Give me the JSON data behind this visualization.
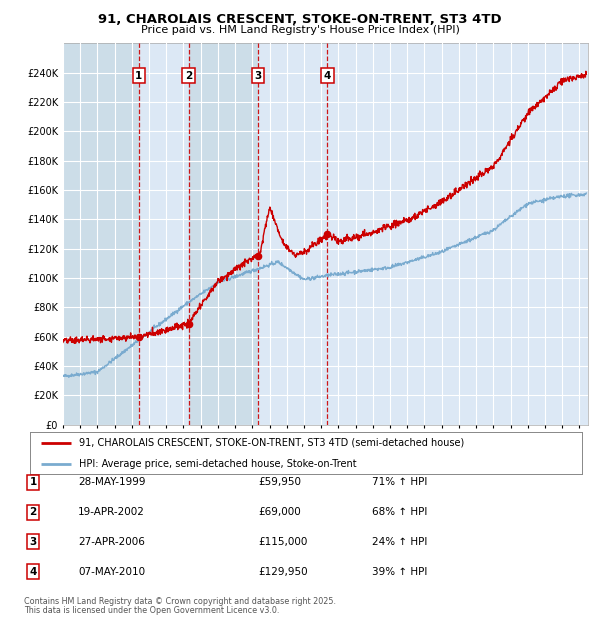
{
  "title": "91, CHAROLAIS CRESCENT, STOKE-ON-TRENT, ST3 4TD",
  "subtitle": "Price paid vs. HM Land Registry's House Price Index (HPI)",
  "ylim": [
    0,
    260000
  ],
  "yticks": [
    0,
    20000,
    40000,
    60000,
    80000,
    100000,
    120000,
    140000,
    160000,
    180000,
    200000,
    220000,
    240000
  ],
  "ytick_labels": [
    "£0",
    "£20K",
    "£40K",
    "£60K",
    "£80K",
    "£100K",
    "£120K",
    "£140K",
    "£160K",
    "£180K",
    "£200K",
    "£220K",
    "£240K"
  ],
  "xlim_start": 1995.0,
  "xlim_end": 2025.5,
  "background_color": "#ffffff",
  "plot_bg_color": "#dce8f5",
  "grid_color": "#ffffff",
  "red_line_color": "#cc0000",
  "blue_line_color": "#7aabcf",
  "vline_color": "#cc0000",
  "legend_entries": [
    "91, CHAROLAIS CRESCENT, STOKE-ON-TRENT, ST3 4TD (semi-detached house)",
    "HPI: Average price, semi-detached house, Stoke-on-Trent"
  ],
  "transactions": [
    {
      "num": 1,
      "date": "28-MAY-1999",
      "year": 1999.41,
      "price": 59950
    },
    {
      "num": 2,
      "date": "19-APR-2002",
      "year": 2002.3,
      "price": 69000
    },
    {
      "num": 3,
      "date": "27-APR-2006",
      "year": 2006.32,
      "price": 115000
    },
    {
      "num": 4,
      "date": "07-MAY-2010",
      "year": 2010.35,
      "price": 129950
    }
  ],
  "footer_line1": "Contains HM Land Registry data © Crown copyright and database right 2025.",
  "footer_line2": "This data is licensed under the Open Government Licence v3.0.",
  "table_rows": [
    [
      "1",
      "28-MAY-1999",
      "£59,950",
      "71% ↑ HPI"
    ],
    [
      "2",
      "19-APR-2002",
      "£69,000",
      "68% ↑ HPI"
    ],
    [
      "3",
      "27-APR-2006",
      "£115,000",
      "24% ↑ HPI"
    ],
    [
      "4",
      "07-MAY-2010",
      "£129,950",
      "39% ↑ HPI"
    ]
  ],
  "span_colors": [
    "#ccdde8",
    "#dce8f5",
    "#ccdde8",
    "#dce8f5"
  ]
}
